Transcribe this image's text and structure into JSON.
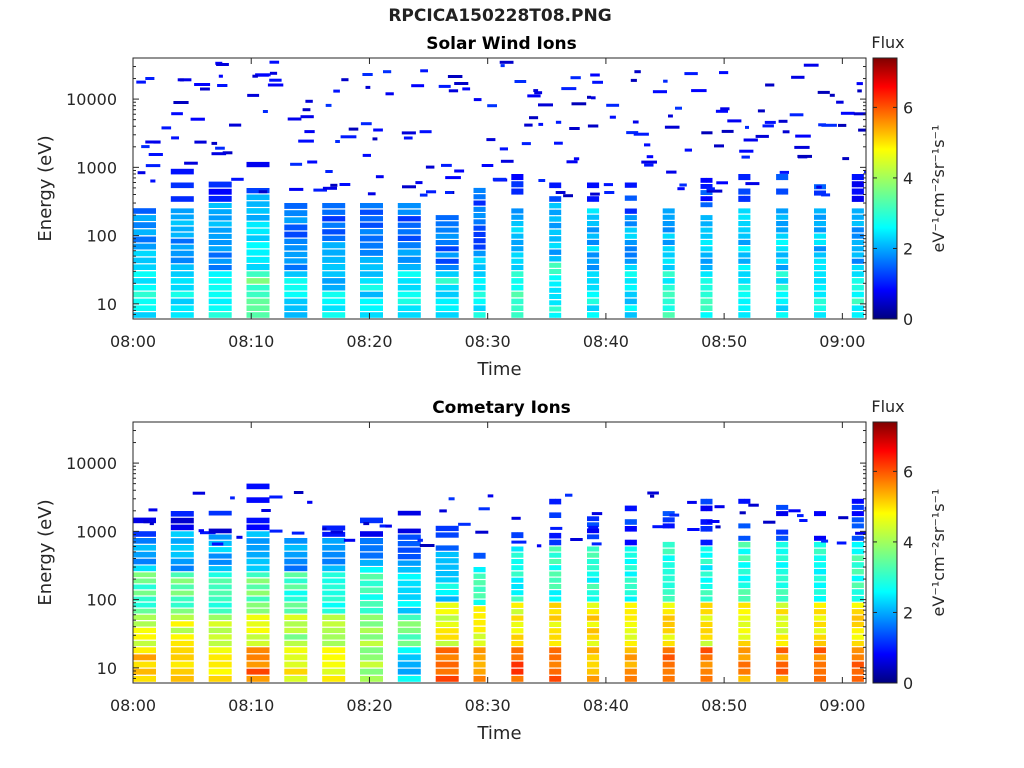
{
  "figure": {
    "title": "RPCICA150228T08.PNG"
  },
  "chart_data": [
    {
      "type": "heatmap",
      "title": "Solar Wind Ions",
      "xlabel": "Time",
      "ylabel": "Energy (eV)",
      "x_ticks": [
        "08:00",
        "08:10",
        "08:20",
        "08:30",
        "08:40",
        "08:50",
        "09:00"
      ],
      "y_ticks": [
        "10",
        "100",
        "1000",
        "10000"
      ],
      "yscale": "log",
      "ylim": [
        6,
        40000
      ],
      "xlim": [
        "08:00",
        "09:02"
      ],
      "colorbar": {
        "label_top": "Flux",
        "label": "eV⁻¹cm⁻²sr⁻¹s⁻¹",
        "ticks": [
          "0",
          "2",
          "4",
          "6"
        ],
        "range": [
          0,
          7.4
        ],
        "colormap": "jet"
      },
      "columns": [
        {
          "t": 0.0,
          "bands": [
            [
              6,
              30,
              2.7
            ],
            [
              30,
              60,
              2.2
            ],
            [
              60,
              200,
              2.0
            ],
            [
              200,
              400,
              1.3
            ]
          ]
        },
        {
          "t": 3.2,
          "bands": [
            [
              6,
              30,
              2.8
            ],
            [
              30,
              60,
              2.1
            ],
            [
              60,
              250,
              2.1
            ],
            [
              300,
              1200,
              0.9
            ]
          ]
        },
        {
          "t": 6.4,
          "bands": [
            [
              6,
              30,
              2.7
            ],
            [
              30,
              70,
              2.0
            ],
            [
              70,
              300,
              2.2
            ],
            [
              300,
              1000,
              0.9
            ]
          ]
        },
        {
          "t": 9.6,
          "bands": [
            [
              6,
              30,
              3.5
            ],
            [
              30,
              80,
              2.6
            ],
            [
              80,
              400,
              2.3
            ],
            [
              400,
              1500,
              1.0
            ]
          ]
        },
        {
          "t": 12.8,
          "bands": [
            [
              6,
              30,
              2.6
            ],
            [
              30,
              90,
              2.1
            ],
            [
              90,
              300,
              1.8
            ]
          ]
        },
        {
          "t": 16.0,
          "bands": [
            [
              6,
              30,
              2.5
            ],
            [
              30,
              80,
              2.0
            ],
            [
              80,
              300,
              1.6
            ]
          ]
        },
        {
          "t": 19.2,
          "bands": [
            [
              6,
              30,
              2.6
            ],
            [
              30,
              100,
              2.1
            ],
            [
              100,
              300,
              1.7
            ]
          ]
        },
        {
          "t": 22.4,
          "bands": [
            [
              6,
              30,
              2.6
            ],
            [
              30,
              80,
              1.9
            ],
            [
              80,
              300,
              1.6
            ]
          ]
        },
        {
          "t": 25.6,
          "bands": [
            [
              6,
              30,
              2.8
            ],
            [
              30,
              200,
              1.8
            ]
          ]
        },
        {
          "t": 28.8,
          "bands": [
            [
              6,
              30,
              2.7
            ],
            [
              30,
              60,
              2.2
            ],
            [
              60,
              500,
              1.6
            ]
          ]
        },
        {
          "t": 32.0,
          "bands": [
            [
              6,
              30,
              3.0
            ],
            [
              30,
              250,
              2.2
            ],
            [
              300,
              800,
              1.2
            ]
          ]
        },
        {
          "t": 35.2,
          "bands": [
            [
              6,
              40,
              2.9
            ],
            [
              40,
              300,
              2.2
            ],
            [
              300,
              600,
              1.3
            ]
          ]
        },
        {
          "t": 38.4,
          "bands": [
            [
              6,
              30,
              2.7
            ],
            [
              30,
              250,
              2.3
            ],
            [
              300,
              600,
              1.4
            ]
          ]
        },
        {
          "t": 41.6,
          "bands": [
            [
              6,
              30,
              2.6
            ],
            [
              30,
              200,
              2.2
            ],
            [
              200,
              600,
              1.3
            ]
          ]
        },
        {
          "t": 44.8,
          "bands": [
            [
              6,
              30,
              3.0
            ],
            [
              30,
              250,
              2.3
            ],
            [
              300,
              700,
              1.4
            ]
          ]
        },
        {
          "t": 48.0,
          "bands": [
            [
              6,
              30,
              2.9
            ],
            [
              30,
              200,
              2.3
            ],
            [
              250,
              700,
              1.3
            ]
          ]
        },
        {
          "t": 51.2,
          "bands": [
            [
              6,
              30,
              2.7
            ],
            [
              30,
              250,
              2.4
            ],
            [
              300,
              800,
              1.4
            ]
          ]
        },
        {
          "t": 54.4,
          "bands": [
            [
              6,
              30,
              2.8
            ],
            [
              30,
              250,
              2.4
            ],
            [
              300,
              800,
              1.3
            ]
          ]
        },
        {
          "t": 57.6,
          "bands": [
            [
              6,
              30,
              2.7
            ],
            [
              30,
              250,
              2.3
            ],
            [
              300,
              700,
              1.4
            ]
          ]
        },
        {
          "t": 60.8,
          "bands": [
            [
              6,
              30,
              2.9
            ],
            [
              30,
              250,
              2.2
            ],
            [
              300,
              800,
              1.2
            ]
          ]
        }
      ]
    },
    {
      "type": "heatmap",
      "title": "Cometary Ions",
      "xlabel": "Time",
      "ylabel": "Energy (eV)",
      "x_ticks": [
        "08:00",
        "08:10",
        "08:20",
        "08:30",
        "08:40",
        "08:50",
        "09:00"
      ],
      "y_ticks": [
        "10",
        "100",
        "1000",
        "10000"
      ],
      "yscale": "log",
      "ylim": [
        6,
        40000
      ],
      "xlim": [
        "08:00",
        "09:02"
      ],
      "colorbar": {
        "label_top": "Flux",
        "label": "eV⁻¹cm⁻²sr⁻¹s⁻¹",
        "ticks": [
          "0",
          "2",
          "4",
          "6"
        ],
        "range": [
          0,
          7.4
        ],
        "colormap": "jet"
      },
      "columns": [
        {
          "t": 0.0,
          "bands": [
            [
              6,
              20,
              5.1
            ],
            [
              20,
              60,
              4.4
            ],
            [
              60,
              250,
              3.4
            ],
            [
              250,
              800,
              2.2
            ],
            [
              800,
              2000,
              1.0
            ]
          ]
        },
        {
          "t": 3.2,
          "bands": [
            [
              6,
              20,
              5.0
            ],
            [
              20,
              60,
              4.4
            ],
            [
              60,
              250,
              3.5
            ],
            [
              250,
              1000,
              2.1
            ],
            [
              1000,
              2500,
              0.9
            ]
          ]
        },
        {
          "t": 6.4,
          "bands": [
            [
              6,
              20,
              4.8
            ],
            [
              20,
              60,
              4.2
            ],
            [
              60,
              250,
              3.3
            ],
            [
              250,
              900,
              2.2
            ],
            [
              900,
              2000,
              0.9
            ]
          ]
        },
        {
          "t": 9.6,
          "bands": [
            [
              6,
              20,
              5.6
            ],
            [
              20,
              60,
              4.3
            ],
            [
              60,
              250,
              3.6
            ],
            [
              250,
              1000,
              2.1
            ],
            [
              1000,
              5000,
              0.8
            ]
          ]
        },
        {
          "t": 12.8,
          "bands": [
            [
              6,
              20,
              4.6
            ],
            [
              20,
              60,
              4.0
            ],
            [
              60,
              250,
              3.2
            ],
            [
              250,
              800,
              2.1
            ],
            [
              800,
              1500,
              1.0
            ]
          ]
        },
        {
          "t": 16.0,
          "bands": [
            [
              6,
              20,
              4.5
            ],
            [
              20,
              60,
              3.8
            ],
            [
              60,
              250,
              3.0
            ],
            [
              250,
              800,
              2.0
            ],
            [
              800,
              1500,
              0.9
            ]
          ]
        },
        {
          "t": 19.2,
          "bands": [
            [
              6,
              20,
              3.9
            ],
            [
              20,
              60,
              3.8
            ],
            [
              60,
              300,
              3.2
            ],
            [
              300,
              800,
              2.0
            ],
            [
              800,
              2000,
              0.9
            ]
          ]
        },
        {
          "t": 22.4,
          "bands": [
            [
              6,
              20,
              2.5
            ],
            [
              20,
              60,
              3.4
            ],
            [
              60,
              300,
              2.6
            ],
            [
              300,
              900,
              1.8
            ],
            [
              900,
              2000,
              0.8
            ]
          ]
        },
        {
          "t": 25.6,
          "bands": [
            [
              6,
              20,
              5.7
            ],
            [
              20,
              90,
              4.5
            ],
            [
              90,
              500,
              2.6
            ],
            [
              500,
              1500,
              1.2
            ]
          ]
        },
        {
          "t": 28.8,
          "bands": [
            [
              6,
              20,
              5.3
            ],
            [
              20,
              80,
              4.6
            ],
            [
              80,
              300,
              3.0
            ],
            [
              300,
              1000,
              1.3
            ]
          ]
        },
        {
          "t": 32.0,
          "bands": [
            [
              6,
              20,
              5.9
            ],
            [
              20,
              90,
              4.6
            ],
            [
              90,
              600,
              2.9
            ],
            [
              600,
              2000,
              1.2
            ]
          ]
        },
        {
          "t": 35.2,
          "bands": [
            [
              6,
              20,
              5.8
            ],
            [
              20,
              90,
              4.7
            ],
            [
              90,
              600,
              3.0
            ],
            [
              600,
              3000,
              1.2
            ]
          ]
        },
        {
          "t": 38.4,
          "bands": [
            [
              6,
              20,
              5.2
            ],
            [
              20,
              90,
              4.8
            ],
            [
              90,
              600,
              3.0
            ],
            [
              600,
              2500,
              1.2
            ]
          ]
        },
        {
          "t": 41.6,
          "bands": [
            [
              6,
              20,
              5.3
            ],
            [
              20,
              90,
              4.7
            ],
            [
              90,
              600,
              3.1
            ],
            [
              600,
              3000,
              1.2
            ]
          ]
        },
        {
          "t": 44.8,
          "bands": [
            [
              6,
              20,
              5.6
            ],
            [
              20,
              90,
              4.7
            ],
            [
              90,
              700,
              3.0
            ],
            [
              700,
              3000,
              1.3
            ]
          ]
        },
        {
          "t": 48.0,
          "bands": [
            [
              6,
              20,
              5.7
            ],
            [
              20,
              90,
              4.6
            ],
            [
              90,
              600,
              2.9
            ],
            [
              600,
              3000,
              1.2
            ]
          ]
        },
        {
          "t": 51.2,
          "bands": [
            [
              6,
              20,
              5.4
            ],
            [
              20,
              90,
              4.7
            ],
            [
              90,
              700,
              3.0
            ],
            [
              700,
              3000,
              1.2
            ]
          ]
        },
        {
          "t": 54.4,
          "bands": [
            [
              6,
              20,
              5.5
            ],
            [
              20,
              90,
              4.6
            ],
            [
              90,
              700,
              3.0
            ],
            [
              700,
              3000,
              1.2
            ]
          ]
        },
        {
          "t": 57.6,
          "bands": [
            [
              6,
              20,
              5.6
            ],
            [
              20,
              90,
              4.8
            ],
            [
              90,
              700,
              3.0
            ],
            [
              700,
              3000,
              1.2
            ]
          ]
        },
        {
          "t": 60.8,
          "bands": [
            [
              6,
              20,
              5.8
            ],
            [
              20,
              90,
              4.7
            ],
            [
              90,
              700,
              3.1
            ],
            [
              700,
              3000,
              1.3
            ]
          ]
        }
      ]
    }
  ]
}
